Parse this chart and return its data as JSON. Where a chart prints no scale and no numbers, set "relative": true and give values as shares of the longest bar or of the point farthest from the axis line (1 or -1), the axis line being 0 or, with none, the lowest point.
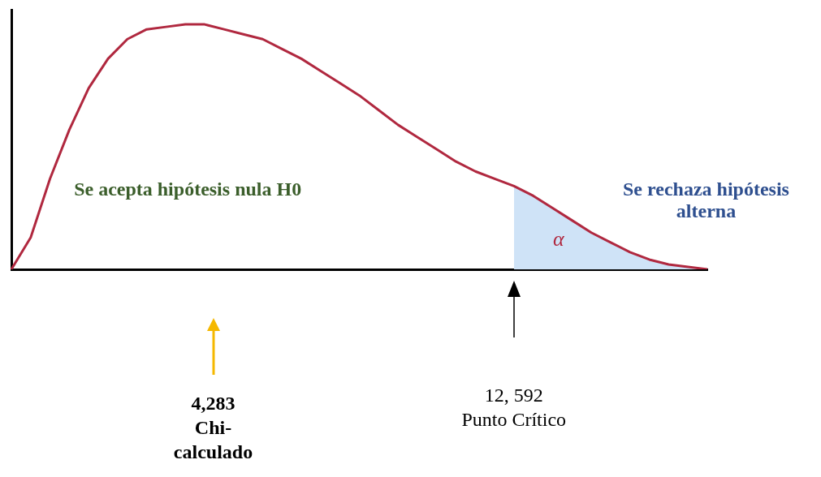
{
  "chart_data": {
    "type": "line",
    "relative": true,
    "categories": [
      null,
      null,
      null,
      null,
      null,
      null,
      null,
      null,
      null,
      null,
      null,
      null,
      null,
      null,
      null,
      null,
      null,
      null,
      null,
      null,
      null,
      null,
      null,
      null,
      null,
      null,
      null,
      null,
      null,
      null,
      null,
      null,
      null,
      null,
      null,
      null,
      null
    ],
    "series": [
      {
        "color": "#b0283f",
        "values": [
          0,
          0.13,
          0.37,
          0.57,
          0.74,
          0.86,
          0.94,
          0.98,
          0.99,
          1,
          1,
          0.98,
          0.96,
          0.94,
          0.9,
          0.86,
          0.81,
          0.76,
          0.71,
          0.65,
          0.59,
          0.54,
          0.49,
          0.44,
          0.4,
          0.37,
          0.34,
          0.3,
          0.25,
          0.2,
          0.15,
          0.11,
          0.07,
          0.04,
          0.02,
          0.01,
          0
        ]
      },
      {
        "type": "area",
        "color": "#cfe3f7",
        "values": [
          null,
          null,
          null,
          null,
          null,
          null,
          null,
          null,
          null,
          null,
          null,
          null,
          null,
          null,
          null,
          null,
          null,
          null,
          null,
          null,
          null,
          null,
          null,
          null,
          null,
          null,
          0.34,
          0.3,
          0.25,
          0.2,
          0.15,
          0.11,
          0.07,
          0.04,
          0.02,
          0.01,
          0
        ]
      }
    ],
    "annotations": [
      "Se acepta hipótesis nula H0",
      "Se rechaza hipótesis alterna",
      "α",
      "4,283\nChi-calculado",
      "12, 592\nPunto Crítico"
    ]
  }
}
